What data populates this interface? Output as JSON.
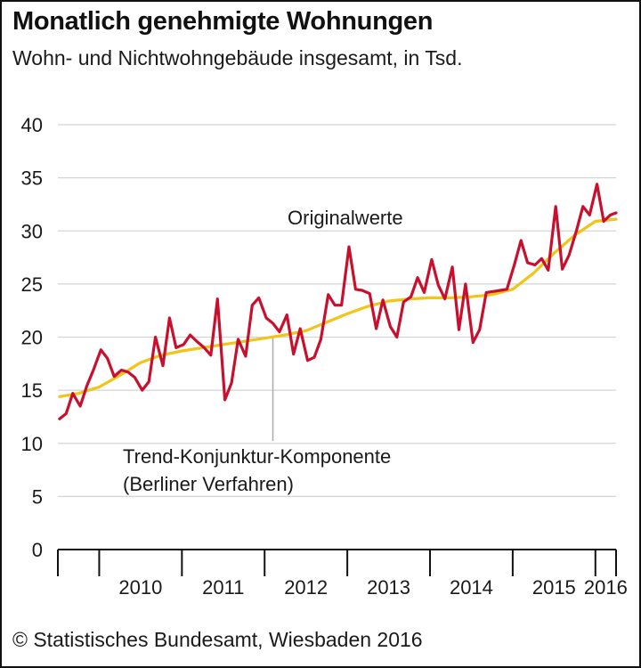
{
  "header": {
    "title": "Monatlich genehmigte Wohnungen",
    "subtitle": "Wohn- und Nichtwohngebäude insgesamt, in Tsd."
  },
  "footer": {
    "source": "© Statistisches Bundesamt, Wiesbaden 2016"
  },
  "chart_data": {
    "type": "line",
    "title": "Monatlich genehmigte Wohnungen",
    "subtitle": "Wohn- und Nichtwohngebäude insgesamt, in Tsd.",
    "ylim": [
      0,
      40
    ],
    "yticks": [
      0,
      5,
      10,
      15,
      20,
      25,
      30,
      35,
      40
    ],
    "xlim": [
      2009.5,
      2016.25
    ],
    "year_labels": [
      "2010",
      "2011",
      "2012",
      "2013",
      "2014",
      "2015",
      "2016"
    ],
    "grid": true,
    "annotations": [
      {
        "text": "Originalwerte"
      },
      {
        "text": "Trend-Konjunktur-Komponente"
      },
      {
        "text": "(Berliner Verfahren)"
      }
    ],
    "colors": {
      "original": "#c8102e",
      "trend": "#f2c318",
      "grid": "#d4d4d4",
      "axis": "#111111",
      "leader": "#aaaaaa"
    },
    "series": [
      {
        "name": "Originalwerte",
        "x": [
          2009.52,
          2009.6,
          2009.68,
          2009.77,
          2009.85,
          2009.93,
          2010.02,
          2010.1,
          2010.18,
          2010.27,
          2010.35,
          2010.43,
          2010.52,
          2010.6,
          2010.68,
          2010.77,
          2010.85,
          2010.93,
          2011.02,
          2011.1,
          2011.18,
          2011.27,
          2011.35,
          2011.43,
          2011.52,
          2011.6,
          2011.68,
          2011.77,
          2011.85,
          2011.93,
          2012.02,
          2012.1,
          2012.18,
          2012.27,
          2012.35,
          2012.43,
          2012.52,
          2012.6,
          2012.68,
          2012.77,
          2012.85,
          2012.93,
          2013.02,
          2013.1,
          2013.18,
          2013.27,
          2013.35,
          2013.43,
          2013.52,
          2013.6,
          2013.68,
          2013.77,
          2013.85,
          2013.93,
          2014.02,
          2014.1,
          2014.18,
          2014.27,
          2014.35,
          2014.43,
          2014.52,
          2014.6,
          2014.68,
          2014.77,
          2014.85,
          2014.93,
          2015.02,
          2015.1,
          2015.18,
          2015.27,
          2015.35,
          2015.43,
          2015.52,
          2015.6,
          2015.68,
          2015.77,
          2015.85,
          2015.93,
          2016.02,
          2016.1,
          2016.18,
          2016.25
        ],
        "values": [
          12.3,
          12.8,
          14.7,
          13.5,
          15.4,
          16.9,
          18.8,
          18.0,
          16.3,
          16.9,
          16.7,
          16.2,
          15.0,
          15.8,
          20.0,
          17.3,
          21.8,
          19.0,
          19.3,
          20.2,
          19.6,
          19.0,
          18.3,
          23.6,
          14.1,
          15.7,
          19.8,
          18.2,
          23.0,
          23.7,
          21.8,
          21.3,
          20.5,
          22.1,
          18.4,
          20.8,
          17.8,
          18.1,
          19.8,
          24.0,
          23.0,
          23.0,
          28.5,
          24.5,
          24.4,
          24.1,
          20.8,
          23.5,
          21.0,
          20.0,
          23.3,
          23.8,
          25.6,
          24.2,
          27.3,
          24.9,
          23.6,
          26.6,
          20.7,
          25.0,
          19.5,
          20.7,
          24.2,
          24.3,
          24.4,
          24.5,
          26.8,
          29.1,
          27.0,
          26.8,
          27.4,
          26.3,
          32.3,
          26.4,
          27.7,
          30.0,
          32.3,
          31.5,
          34.4,
          30.9,
          31.5,
          31.7
        ]
      },
      {
        "name": "Trend-Konjunktur-Komponente",
        "x": [
          2009.52,
          2009.75,
          2010.0,
          2010.25,
          2010.5,
          2010.75,
          2011.0,
          2011.25,
          2011.5,
          2011.75,
          2012.0,
          2012.25,
          2012.5,
          2012.75,
          2013.0,
          2013.25,
          2013.5,
          2013.75,
          2014.0,
          2014.25,
          2014.5,
          2014.75,
          2015.0,
          2015.25,
          2015.5,
          2015.75,
          2016.0,
          2016.25
        ],
        "values": [
          14.4,
          14.7,
          15.3,
          16.4,
          17.6,
          18.3,
          18.7,
          19.0,
          19.3,
          19.6,
          19.9,
          20.2,
          20.6,
          21.4,
          22.2,
          22.9,
          23.4,
          23.6,
          23.7,
          23.7,
          23.8,
          24.0,
          24.5,
          26.0,
          27.9,
          29.6,
          30.9,
          31.1
        ]
      }
    ]
  }
}
